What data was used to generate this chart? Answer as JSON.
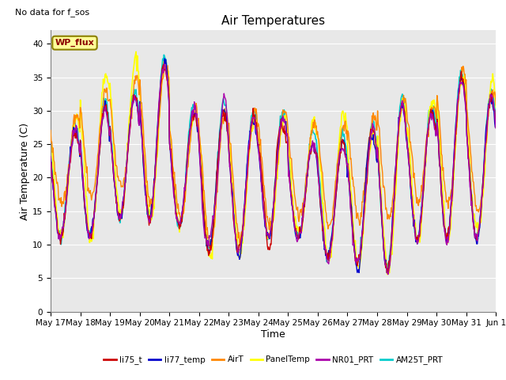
{
  "title": "Air Temperatures",
  "xlabel": "Time",
  "ylabel": "Air Temperature (C)",
  "top_left_text": "No data for f_sos",
  "legend_box_text": "WP_flux",
  "legend_box_color": "#ffff99",
  "legend_box_border": "#8B8000",
  "legend_box_text_color": "#8B0000",
  "ylim": [
    0,
    42
  ],
  "yticks": [
    0,
    5,
    10,
    15,
    20,
    25,
    30,
    35,
    40
  ],
  "xtick_labels": [
    "May 17",
    "May 18",
    "May 19",
    "May 20",
    "May 21",
    "May 22",
    "May 23",
    "May 24",
    "May 25",
    "May 26",
    "May 27",
    "May 28",
    "May 29",
    "May 30",
    "May 31",
    "Jun 1"
  ],
  "series": [
    {
      "name": "li75_t",
      "color": "#cc0000",
      "lw": 1.0,
      "zorder": 5
    },
    {
      "name": "li77_temp",
      "color": "#0000cc",
      "lw": 1.0,
      "zorder": 4
    },
    {
      "name": "AirT",
      "color": "#ff8800",
      "lw": 1.0,
      "zorder": 3
    },
    {
      "name": "PanelTemp",
      "color": "#ffff00",
      "lw": 1.2,
      "zorder": 2
    },
    {
      "name": "NR01_PRT",
      "color": "#aa00aa",
      "lw": 1.0,
      "zorder": 6
    },
    {
      "name": "AM25T_PRT",
      "color": "#00cccc",
      "lw": 1.2,
      "zorder": 1
    }
  ],
  "bg_color": "#e8e8e8",
  "grid_color": "#ffffff",
  "title_fontsize": 11,
  "axis_label_fontsize": 9,
  "tick_fontsize": 7.5,
  "n_days": 15,
  "pts_per_day": 48,
  "daily_min": [
    11,
    11,
    14,
    14,
    13,
    9,
    9,
    11,
    11,
    8,
    7,
    6,
    11,
    11,
    11
  ],
  "daily_max_base": [
    27,
    30,
    32,
    37,
    30,
    30,
    29,
    29,
    25,
    25,
    27,
    31,
    30,
    35,
    32
  ],
  "daily_max_panel": [
    28,
    33,
    35,
    37,
    30,
    30,
    29,
    29,
    25,
    27,
    27,
    31,
    31,
    35,
    32
  ]
}
